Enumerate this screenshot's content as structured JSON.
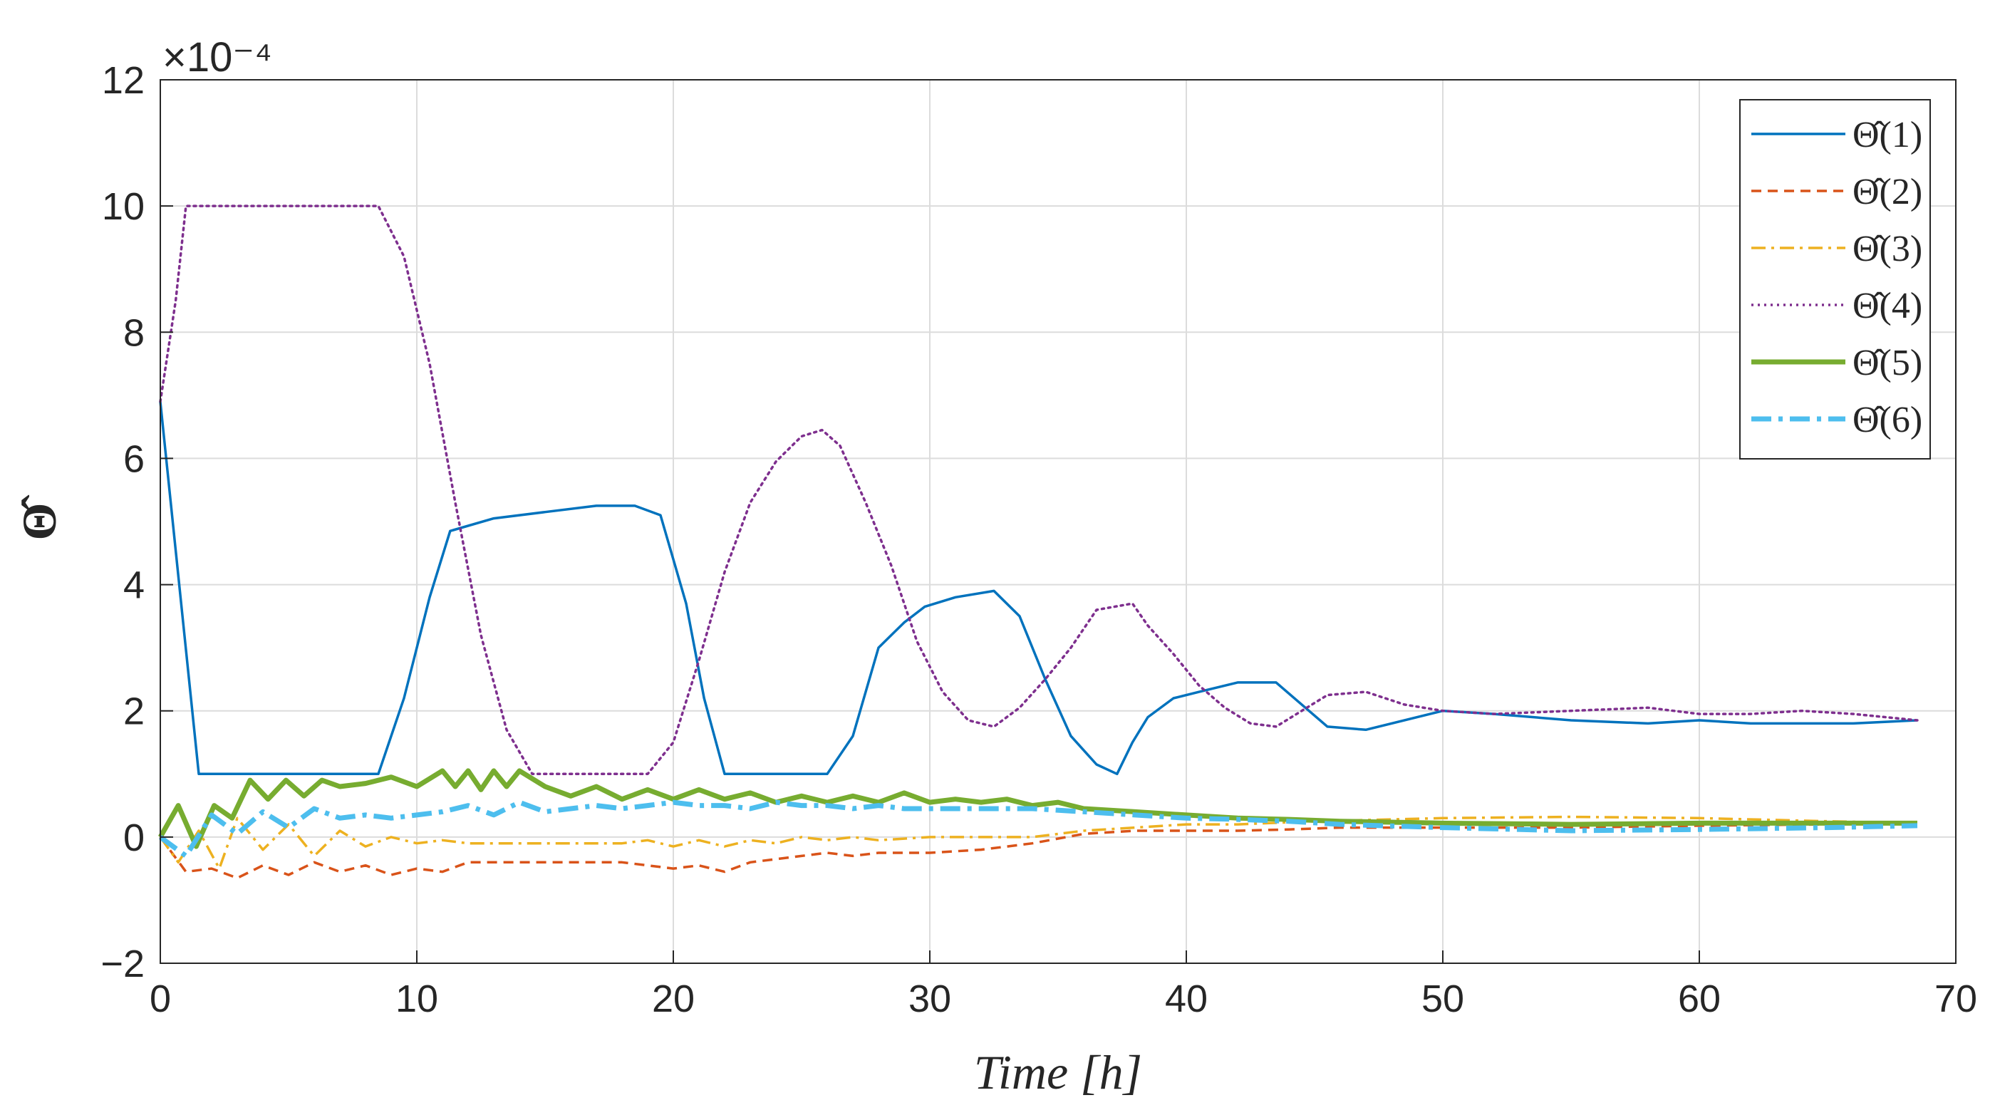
{
  "chart_data": {
    "type": "line",
    "title": "",
    "xlabel": "Time [h]",
    "ylabel": "Θ̂",
    "xlim": [
      0,
      70
    ],
    "ylim": [
      -2,
      12
    ],
    "y_multiplier_label": "×10⁻⁴",
    "x_ticks": [
      "0",
      "10",
      "20",
      "30",
      "40",
      "50",
      "60",
      "70"
    ],
    "y_ticks": [
      "−2",
      "0",
      "2",
      "4",
      "6",
      "8",
      "10",
      "12"
    ],
    "grid": true,
    "legend_position": "top-right",
    "series": [
      {
        "name": "Θ̂(1)",
        "color": "#0072BD",
        "dash": "solid",
        "width": "thin",
        "x": [
          0,
          1.5,
          8.5,
          9.5,
          10.5,
          11.3,
          13,
          15,
          17,
          18.5,
          19.5,
          20.5,
          21.2,
          22,
          26,
          27,
          28,
          29,
          29.8,
          31,
          32.5,
          33.5,
          34.5,
          35.5,
          36.5,
          37.3,
          37.9,
          38.5,
          39.5,
          40.5,
          42,
          43.5,
          44.5,
          45.5,
          47,
          49,
          50,
          52,
          55,
          58,
          60,
          62,
          64,
          66,
          68.5
        ],
        "y": [
          6.9,
          1.0,
          1.0,
          2.2,
          3.8,
          4.85,
          5.05,
          5.15,
          5.25,
          5.25,
          5.1,
          3.7,
          2.2,
          1.0,
          1.0,
          1.6,
          3.0,
          3.4,
          3.65,
          3.8,
          3.9,
          3.5,
          2.5,
          1.6,
          1.15,
          1.0,
          1.5,
          1.9,
          2.2,
          2.3,
          2.45,
          2.45,
          2.1,
          1.75,
          1.7,
          1.9,
          2.0,
          1.95,
          1.85,
          1.8,
          1.85,
          1.8,
          1.8,
          1.8,
          1.85
        ]
      },
      {
        "name": "Θ̂(2)",
        "color": "#D95319",
        "dash": "dashed",
        "width": "thin",
        "x": [
          0,
          1,
          2,
          3,
          4,
          5,
          6,
          7,
          8,
          9,
          10,
          11,
          12,
          14,
          16,
          18,
          19,
          20,
          21,
          22,
          23,
          24,
          25,
          26,
          27,
          28,
          29,
          30,
          32,
          34,
          36,
          38,
          40,
          42,
          44,
          46,
          48,
          50,
          55,
          60,
          65,
          68.5
        ],
        "y": [
          0.0,
          -0.55,
          -0.5,
          -0.65,
          -0.45,
          -0.6,
          -0.4,
          -0.55,
          -0.45,
          -0.6,
          -0.5,
          -0.55,
          -0.4,
          -0.4,
          -0.4,
          -0.4,
          -0.45,
          -0.5,
          -0.45,
          -0.55,
          -0.4,
          -0.35,
          -0.3,
          -0.25,
          -0.3,
          -0.25,
          -0.25,
          -0.25,
          -0.2,
          -0.1,
          0.05,
          0.1,
          0.1,
          0.1,
          0.12,
          0.15,
          0.15,
          0.15,
          0.15,
          0.18,
          0.2,
          0.22
        ]
      },
      {
        "name": "Θ̂(3)",
        "color": "#EDB120",
        "dash": "dashdot",
        "width": "thin",
        "x": [
          0,
          0.7,
          1.5,
          2.3,
          3,
          4,
          5,
          6,
          7,
          8,
          9,
          10,
          11,
          12,
          14,
          16,
          18,
          19,
          20,
          21,
          22,
          23,
          24,
          25,
          26,
          27,
          28,
          30,
          32,
          34,
          36,
          38,
          40,
          42,
          45,
          48,
          50,
          55,
          60,
          65,
          68.5
        ],
        "y": [
          0.0,
          -0.4,
          0.1,
          -0.5,
          0.3,
          -0.2,
          0.2,
          -0.3,
          0.1,
          -0.15,
          0.0,
          -0.1,
          -0.05,
          -0.1,
          -0.1,
          -0.1,
          -0.1,
          -0.05,
          -0.15,
          -0.05,
          -0.15,
          -0.05,
          -0.1,
          0.0,
          -0.05,
          0.0,
          -0.05,
          0.0,
          0.0,
          0.0,
          0.1,
          0.15,
          0.2,
          0.2,
          0.25,
          0.28,
          0.3,
          0.32,
          0.3,
          0.25,
          0.22
        ]
      },
      {
        "name": "Θ̂(4)",
        "color": "#7E2F8E",
        "dash": "dotted",
        "width": "thin",
        "x": [
          0,
          0.6,
          1,
          8.5,
          9.5,
          10.5,
          11.5,
          12.5,
          13.5,
          14.5,
          19,
          20,
          21,
          22,
          23,
          24,
          25,
          25.8,
          26.5,
          27.5,
          28.5,
          29.5,
          30.5,
          31.5,
          32.5,
          33.5,
          34.5,
          35.5,
          36.5,
          37.9,
          38.5,
          39.5,
          40.5,
          41.5,
          42.5,
          43.5,
          44.5,
          45.5,
          47,
          48.5,
          50,
          52,
          55,
          58,
          60,
          62,
          64,
          66,
          68.5
        ],
        "y": [
          6.9,
          8.5,
          10.0,
          10.0,
          9.2,
          7.5,
          5.3,
          3.2,
          1.7,
          1.0,
          1.0,
          1.5,
          2.8,
          4.2,
          5.3,
          5.95,
          6.35,
          6.45,
          6.2,
          5.3,
          4.3,
          3.1,
          2.3,
          1.85,
          1.75,
          2.05,
          2.5,
          3.0,
          3.6,
          3.7,
          3.35,
          2.9,
          2.4,
          2.05,
          1.8,
          1.75,
          2.0,
          2.25,
          2.3,
          2.1,
          2.0,
          1.95,
          2.0,
          2.05,
          1.95,
          1.95,
          2.0,
          1.95,
          1.85
        ]
      },
      {
        "name": "Θ̂(5)",
        "color": "#77AC30",
        "dash": "solid",
        "width": "thick",
        "x": [
          0,
          0.7,
          1.4,
          2.1,
          2.8,
          3.5,
          4.2,
          4.9,
          5.6,
          6.3,
          7,
          8,
          9,
          10,
          11,
          11.5,
          12,
          12.5,
          13,
          13.5,
          14,
          15,
          16,
          17,
          18,
          19,
          20,
          21,
          22,
          23,
          24,
          25,
          26,
          27,
          28,
          29,
          30,
          31,
          32,
          33,
          34,
          35,
          36,
          38,
          40,
          42,
          44,
          46,
          50,
          55,
          60,
          65,
          68.5
        ],
        "y": [
          0.0,
          0.5,
          -0.15,
          0.5,
          0.3,
          0.9,
          0.6,
          0.9,
          0.65,
          0.9,
          0.8,
          0.85,
          0.95,
          0.8,
          1.05,
          0.8,
          1.05,
          0.75,
          1.05,
          0.8,
          1.05,
          0.8,
          0.65,
          0.8,
          0.6,
          0.75,
          0.6,
          0.75,
          0.6,
          0.7,
          0.55,
          0.65,
          0.55,
          0.65,
          0.55,
          0.7,
          0.55,
          0.6,
          0.55,
          0.6,
          0.5,
          0.55,
          0.45,
          0.4,
          0.35,
          0.3,
          0.28,
          0.25,
          0.22,
          0.2,
          0.22,
          0.22,
          0.22
        ]
      },
      {
        "name": "Θ̂(6)",
        "color": "#4DBEEE",
        "dash": "dashdot",
        "width": "thick",
        "x": [
          0,
          1,
          2,
          3,
          4,
          5,
          6,
          7,
          8,
          9,
          10,
          11,
          12,
          13,
          14,
          15,
          16,
          17,
          18,
          19,
          20,
          21,
          22,
          23,
          24,
          25,
          26,
          27,
          28,
          29,
          30,
          32,
          34,
          36,
          38,
          40,
          42,
          44,
          46,
          50,
          55,
          60,
          65,
          68.5
        ],
        "y": [
          0.0,
          -0.3,
          0.35,
          0.05,
          0.4,
          0.15,
          0.45,
          0.3,
          0.35,
          0.3,
          0.35,
          0.4,
          0.5,
          0.35,
          0.55,
          0.4,
          0.45,
          0.5,
          0.45,
          0.5,
          0.55,
          0.5,
          0.5,
          0.45,
          0.55,
          0.5,
          0.5,
          0.45,
          0.5,
          0.45,
          0.45,
          0.45,
          0.45,
          0.4,
          0.35,
          0.3,
          0.28,
          0.25,
          0.2,
          0.15,
          0.1,
          0.12,
          0.15,
          0.18
        ]
      }
    ]
  }
}
